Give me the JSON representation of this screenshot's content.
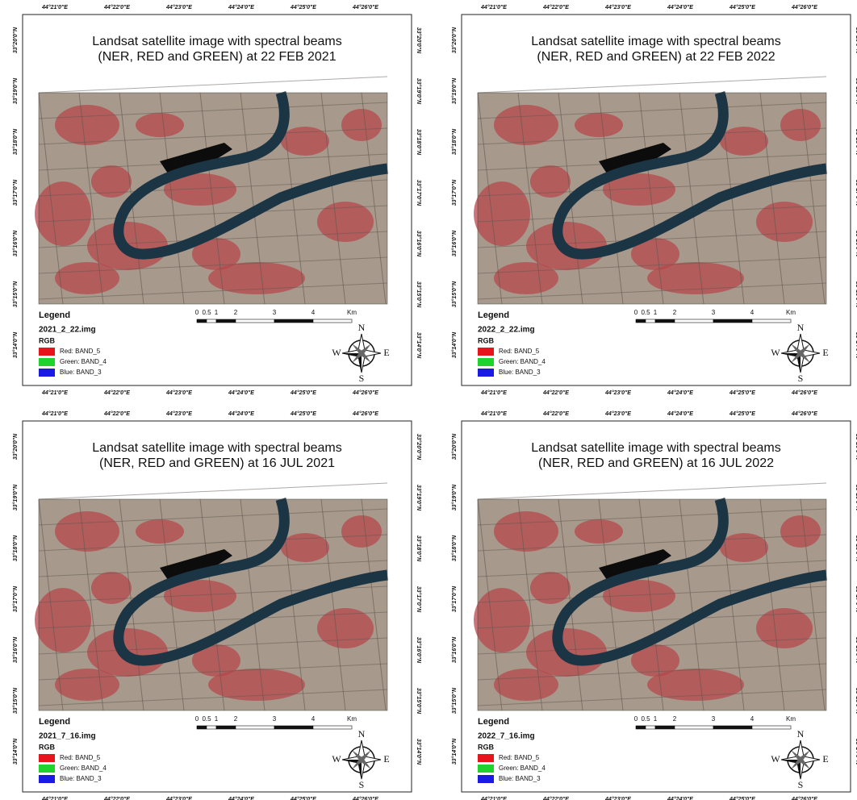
{
  "panels": [
    {
      "title_lines": [
        "Landsat satellite image with spectral beams",
        "(NER, RED and GREEN) at 22 FEB 2021"
      ],
      "file": "2021_2_22.img"
    },
    {
      "title_lines": [
        "Landsat satellite image with spectral beams",
        "(NER, RED and GREEN) at 22 FEB 2022"
      ],
      "file": "2022_2_22.img"
    },
    {
      "title_lines": [
        "Landsat satellite image with spectral beams",
        "(NER, RED and GREEN) at 16 JUL 2021"
      ],
      "file": "2021_7_16.img"
    },
    {
      "title_lines": [
        "Landsat satellite image with spectral beams",
        "(NER, RED and GREEN) at 16 JUL 2022"
      ],
      "file": "2022_7_16.img"
    }
  ],
  "legend": {
    "heading": "Legend",
    "rgb": "RGB",
    "bands": [
      "Red: BAND_5",
      "Green: BAND_4",
      "Blue:  BAND_3"
    ]
  },
  "scale": [
    "0",
    "0.5",
    "1",
    "2",
    "3",
    "4",
    "Km"
  ],
  "compass": {
    "n": "N",
    "s": "S",
    "e": "E",
    "w": "W"
  },
  "longitudes": [
    "44°21'0\"E",
    "44°22'0\"E",
    "44°23'0\"E",
    "44°24'0\"E",
    "44°25'0\"E",
    "44°26'0\"E"
  ],
  "latitudes": [
    "33°20'0\"N",
    "33°19'0\"N",
    "33°18'0\"N",
    "33°17'0\"N",
    "33°16'0\"N",
    "33°15'0\"N",
    "33°14'0\"N"
  ]
}
